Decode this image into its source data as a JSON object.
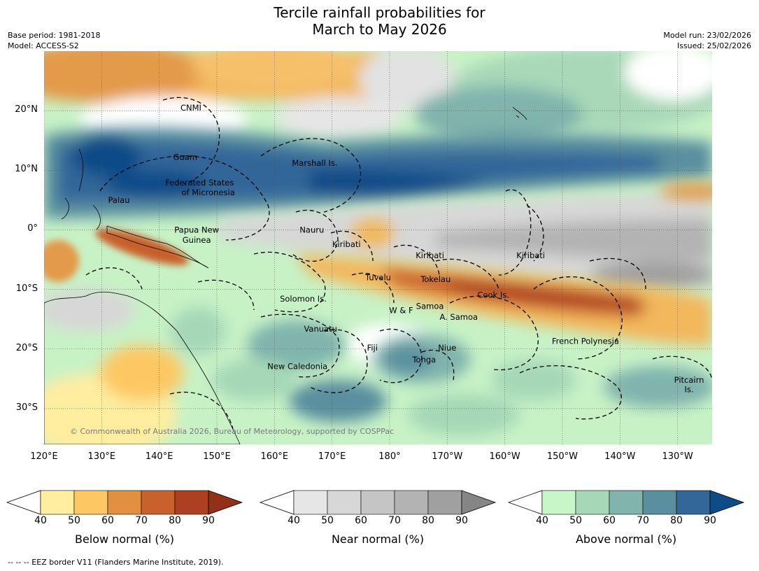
{
  "title_line1": "Tercile rainfall probabilities for",
  "title_line2": "March to May 2026",
  "meta_left": [
    "Base period: 1981-2018",
    "Model: ACCESS-S2"
  ],
  "meta_right": [
    "Model run: 23/02/2026",
    "Issued: 25/02/2026"
  ],
  "lat_ticks": [
    {
      "label": "20°N",
      "lat": 20
    },
    {
      "label": "10°N",
      "lat": 10
    },
    {
      "label": "0°",
      "lat": 0
    },
    {
      "label": "10°S",
      "lat": -10
    },
    {
      "label": "20°S",
      "lat": -20
    },
    {
      "label": "30°S",
      "lat": -30
    }
  ],
  "lon_ticks": [
    {
      "label": "120°E",
      "lon": 120
    },
    {
      "label": "130°E",
      "lon": 130
    },
    {
      "label": "140°E",
      "lon": 140
    },
    {
      "label": "150°E",
      "lon": 150
    },
    {
      "label": "160°E",
      "lon": 160
    },
    {
      "label": "170°E",
      "lon": 170
    },
    {
      "label": "180°",
      "lon": 180
    },
    {
      "label": "170°W",
      "lon": 190
    },
    {
      "label": "160°W",
      "lon": 200
    },
    {
      "label": "150°W",
      "lon": 210
    },
    {
      "label": "140°W",
      "lon": 220
    },
    {
      "label": "130°W",
      "lon": 230
    }
  ],
  "extent": {
    "lon_min": 120,
    "lon_max": 236,
    "lat_min": -36,
    "lat_max": 30
  },
  "region_labels": [
    {
      "text": "CNMI",
      "lon": 145.5,
      "lat": 20.5
    },
    {
      "text": "Guam",
      "lon": 144.5,
      "lat": 12.2
    },
    {
      "text": "Marshall Is.",
      "lon": 167,
      "lat": 11.2
    },
    {
      "text": "Federated States",
      "lon": 147,
      "lat": 7.9
    },
    {
      "text": "of Micronesia",
      "lon": 148.5,
      "lat": 6.3
    },
    {
      "text": "Palau",
      "lon": 133,
      "lat": 5
    },
    {
      "text": "Papua New",
      "lon": 146.5,
      "lat": 0
    },
    {
      "text": "Guinea",
      "lon": 146.5,
      "lat": -1.7
    },
    {
      "text": "Nauru",
      "lon": 166.5,
      "lat": 0
    },
    {
      "text": "Kiribati",
      "lon": 172.5,
      "lat": -2.4
    },
    {
      "text": "Kiribati",
      "lon": 187,
      "lat": -4.3
    },
    {
      "text": "Kiribati",
      "lon": 204.5,
      "lat": -4.3
    },
    {
      "text": "Tuvalu",
      "lon": 178,
      "lat": -8
    },
    {
      "text": "Tokelau",
      "lon": 188,
      "lat": -8.3
    },
    {
      "text": "Cook Is.",
      "lon": 198,
      "lat": -10.9
    },
    {
      "text": "Solomon Is.",
      "lon": 165,
      "lat": -11.6
    },
    {
      "text": "Samoa",
      "lon": 187,
      "lat": -12.8
    },
    {
      "text": "W & F",
      "lon": 182,
      "lat": -13.5
    },
    {
      "text": "A. Samoa",
      "lon": 192,
      "lat": -14.6
    },
    {
      "text": "Vanuatu",
      "lon": 168,
      "lat": -16.6
    },
    {
      "text": "French Polynesia",
      "lon": 214,
      "lat": -18.7
    },
    {
      "text": "Fiji",
      "lon": 177,
      "lat": -19.8
    },
    {
      "text": "Niue",
      "lon": 190,
      "lat": -19.8
    },
    {
      "text": "Tonga",
      "lon": 186,
      "lat": -21.8
    },
    {
      "text": "New Caledonia",
      "lon": 164,
      "lat": -22.9
    },
    {
      "text": "Pitcairn",
      "lon": 232,
      "lat": -25.2
    },
    {
      "text": "Is.",
      "lon": 232,
      "lat": -26.8
    }
  ],
  "credit": "© Commonwealth of Australia 2026, Bureau of Meteorology, supported by COSPPac",
  "colorbars": [
    {
      "label": "Below normal (%)",
      "ticks": [
        "40",
        "50",
        "60",
        "70",
        "80",
        "90"
      ],
      "colors": [
        "#ffeda0",
        "#fdc864",
        "#e0903f",
        "#c8612c",
        "#ac4020"
      ],
      "extend_low": "#ffffff",
      "extend_high": "#923018"
    },
    {
      "label": "Near normal (%)",
      "ticks": [
        "40",
        "50",
        "60",
        "70",
        "80",
        "90"
      ],
      "colors": [
        "#e6e6e6",
        "#d7d7d7",
        "#c5c5c5",
        "#b3b3b3",
        "#a0a0a0"
      ],
      "extend_low": "#ffffff",
      "extend_high": "#858585"
    },
    {
      "label": "Above normal (%)",
      "ticks": [
        "40",
        "50",
        "60",
        "70",
        "80",
        "90"
      ],
      "colors": [
        "#c7f7c9",
        "#a6d8b8",
        "#80b4ad",
        "#5a8f9f",
        "#336699"
      ],
      "extend_low": "#ffffff",
      "extend_high": "#0e4c88"
    }
  ],
  "footnote": "--  --  -- EEZ border V11 (Flanders Marine Institute, 2019)."
}
